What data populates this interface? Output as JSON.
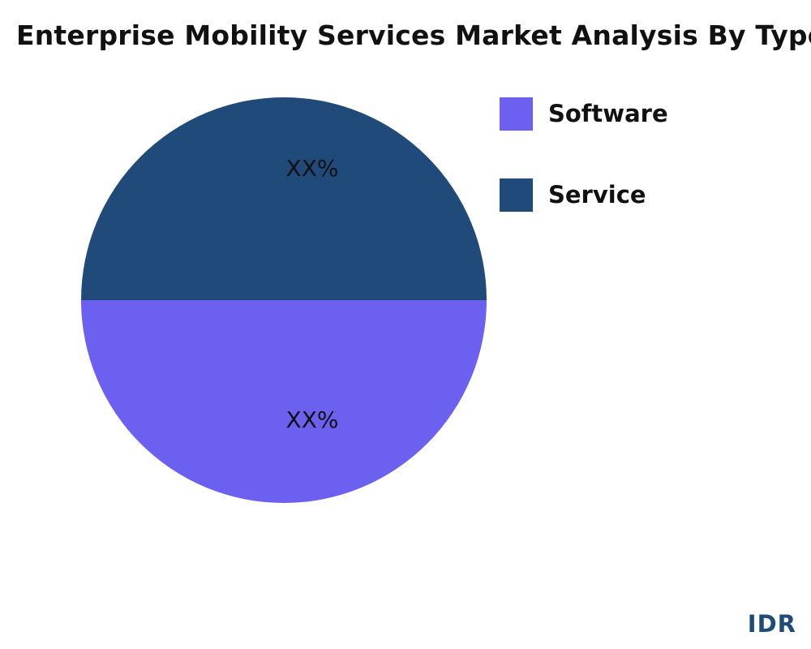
{
  "chart_data": {
    "type": "pie",
    "title": "Enterprise Mobility Services Market Analysis By Type",
    "slices": [
      {
        "name": "Service",
        "value": 50,
        "label": "XX%",
        "color": "#1f4a7a"
      },
      {
        "name": "Software",
        "value": 50,
        "label": "XX%",
        "color": "#6c60f0"
      }
    ],
    "legend": {
      "position": "top-right",
      "items": [
        {
          "label": "Software",
          "color": "#6c60f0"
        },
        {
          "label": "Service",
          "color": "#1f4a7a"
        }
      ]
    }
  },
  "brand": {
    "text": "IDR"
  }
}
